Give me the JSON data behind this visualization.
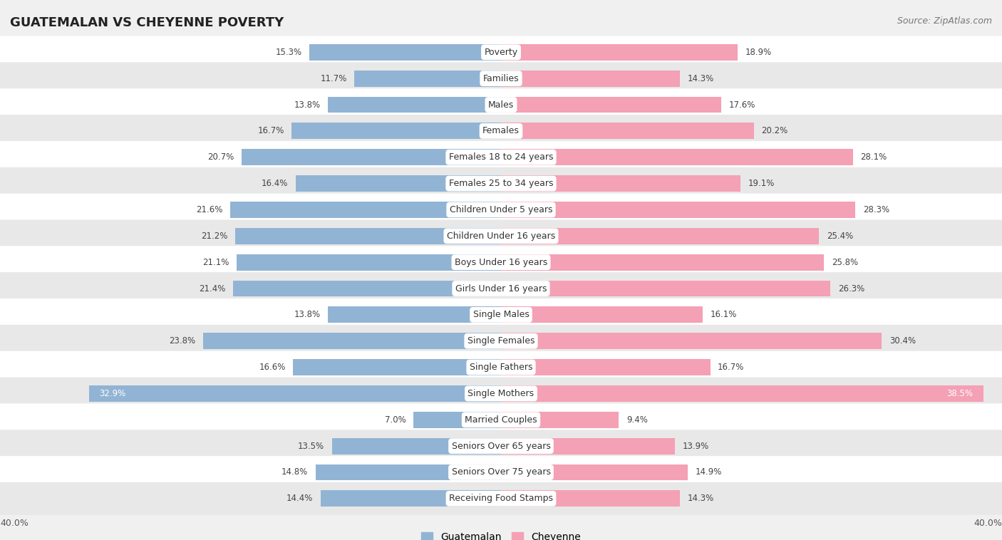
{
  "title": "GUATEMALAN VS CHEYENNE POVERTY",
  "source": "Source: ZipAtlas.com",
  "categories": [
    "Poverty",
    "Families",
    "Males",
    "Females",
    "Females 18 to 24 years",
    "Females 25 to 34 years",
    "Children Under 5 years",
    "Children Under 16 years",
    "Boys Under 16 years",
    "Girls Under 16 years",
    "Single Males",
    "Single Females",
    "Single Fathers",
    "Single Mothers",
    "Married Couples",
    "Seniors Over 65 years",
    "Seniors Over 75 years",
    "Receiving Food Stamps"
  ],
  "guatemalan": [
    15.3,
    11.7,
    13.8,
    16.7,
    20.7,
    16.4,
    21.6,
    21.2,
    21.1,
    21.4,
    13.8,
    23.8,
    16.6,
    32.9,
    7.0,
    13.5,
    14.8,
    14.4
  ],
  "cheyenne": [
    18.9,
    14.3,
    17.6,
    20.2,
    28.1,
    19.1,
    28.3,
    25.4,
    25.8,
    26.3,
    16.1,
    30.4,
    16.7,
    38.5,
    9.4,
    13.9,
    14.9,
    14.3
  ],
  "guatemalan_color": "#92b4d4",
  "cheyenne_color": "#f4a0b5",
  "bg_color": "#f0f0f0",
  "row_color_even": "#ffffff",
  "row_color_odd": "#e8e8e8",
  "axis_max": 40.0,
  "bar_height": 0.62,
  "label_fontsize": 9.0,
  "value_fontsize": 8.5,
  "title_fontsize": 13,
  "source_fontsize": 9,
  "legend_fontsize": 10
}
